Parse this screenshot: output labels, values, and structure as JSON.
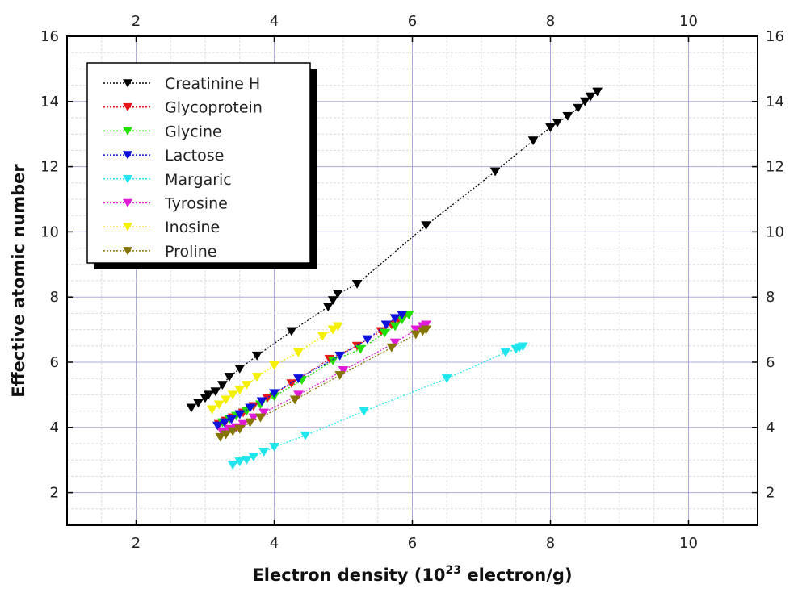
{
  "chart_data": {
    "type": "scatter",
    "title": "",
    "xlabel": "Electron density (10",
    "xlabel_superscript": "23",
    "xlabel_suffix": " electron/g)",
    "ylabel": "Effective atomic number",
    "xlim": [
      1,
      11
    ],
    "ylim": [
      1,
      16
    ],
    "x_ticks": [
      2,
      4,
      6,
      8,
      10
    ],
    "x_tick_labels": [
      "2",
      "4",
      "6",
      "8",
      "10"
    ],
    "y_ticks": [
      2,
      4,
      6,
      8,
      10,
      12,
      14,
      16
    ],
    "y_tick_labels": [
      "2",
      "4",
      "6",
      "8",
      "10",
      "12",
      "14",
      "16"
    ],
    "grid": true,
    "legend_position": "top-left",
    "marker": "triangle-down",
    "line_style": "dotted",
    "series": [
      {
        "name": "Creatinine H",
        "color": "#000000",
        "x": [
          2.8,
          2.9,
          3.0,
          3.05,
          3.15,
          3.25,
          3.35,
          3.5,
          3.75,
          4.25,
          4.78,
          4.85,
          4.92,
          5.2,
          6.2,
          7.2,
          7.75,
          8.0,
          8.1,
          8.25,
          8.4,
          8.5,
          8.58,
          8.68
        ],
        "y": [
          4.6,
          4.75,
          4.9,
          5.0,
          5.1,
          5.3,
          5.55,
          5.8,
          6.2,
          6.95,
          7.7,
          7.9,
          8.1,
          8.4,
          10.2,
          11.85,
          12.8,
          13.2,
          13.35,
          13.55,
          13.8,
          14.0,
          14.15,
          14.3
        ]
      },
      {
        "name": "Glycoprotein",
        "color": "#e8141c",
        "x": [
          3.2,
          3.3,
          3.4,
          3.55,
          3.7,
          3.9,
          4.25,
          4.8,
          5.2,
          5.55,
          5.7,
          5.8,
          5.88
        ],
        "y": [
          4.1,
          4.2,
          4.3,
          4.45,
          4.65,
          4.9,
          5.35,
          6.1,
          6.5,
          6.95,
          7.15,
          7.3,
          7.4
        ]
      },
      {
        "name": "Glycine",
        "color": "#22e000",
        "x": [
          3.25,
          3.35,
          3.45,
          3.6,
          3.8,
          4.0,
          4.4,
          4.85,
          5.25,
          5.6,
          5.75,
          5.85,
          5.95
        ],
        "y": [
          4.15,
          4.25,
          4.35,
          4.5,
          4.7,
          4.95,
          5.45,
          6.05,
          6.4,
          6.9,
          7.1,
          7.3,
          7.45
        ]
      },
      {
        "name": "Lactose",
        "color": "#1010dd",
        "x": [
          3.18,
          3.28,
          3.38,
          3.5,
          3.65,
          3.82,
          4.0,
          4.35,
          4.95,
          5.35,
          5.62,
          5.75,
          5.85
        ],
        "y": [
          4.05,
          4.15,
          4.25,
          4.4,
          4.6,
          4.8,
          5.05,
          5.5,
          6.2,
          6.7,
          7.15,
          7.35,
          7.45
        ]
      },
      {
        "name": "Margaric",
        "color": "#1ee6ec",
        "x": [
          3.4,
          3.5,
          3.6,
          3.7,
          3.85,
          4.0,
          4.45,
          5.3,
          6.5,
          7.35,
          7.5,
          7.55,
          7.6
        ],
        "y": [
          2.85,
          2.95,
          3.0,
          3.1,
          3.25,
          3.4,
          3.75,
          4.5,
          5.5,
          6.3,
          6.4,
          6.45,
          6.48
        ]
      },
      {
        "name": "Tyrosine",
        "color": "#e01ad8",
        "x": [
          3.25,
          3.35,
          3.45,
          3.55,
          3.7,
          3.85,
          4.35,
          5.0,
          5.75,
          6.05,
          6.15,
          6.2
        ],
        "y": [
          3.85,
          3.95,
          4.0,
          4.1,
          4.3,
          4.45,
          5.0,
          5.75,
          6.6,
          7.0,
          7.1,
          7.15
        ]
      },
      {
        "name": "Inosine",
        "color": "#f4f000",
        "x": [
          3.1,
          3.2,
          3.3,
          3.4,
          3.5,
          3.6,
          3.75,
          4.0,
          4.35,
          4.7,
          4.85,
          4.92
        ],
        "y": [
          4.55,
          4.7,
          4.85,
          5.0,
          5.15,
          5.3,
          5.55,
          5.9,
          6.3,
          6.8,
          7.0,
          7.1
        ]
      },
      {
        "name": "Proline",
        "color": "#857500",
        "x": [
          3.22,
          3.3,
          3.4,
          3.5,
          3.65,
          3.8,
          4.3,
          4.95,
          5.7,
          6.05,
          6.15,
          6.2
        ],
        "y": [
          3.7,
          3.78,
          3.88,
          3.95,
          4.15,
          4.3,
          4.85,
          5.6,
          6.45,
          6.85,
          6.95,
          7.0
        ]
      }
    ]
  }
}
